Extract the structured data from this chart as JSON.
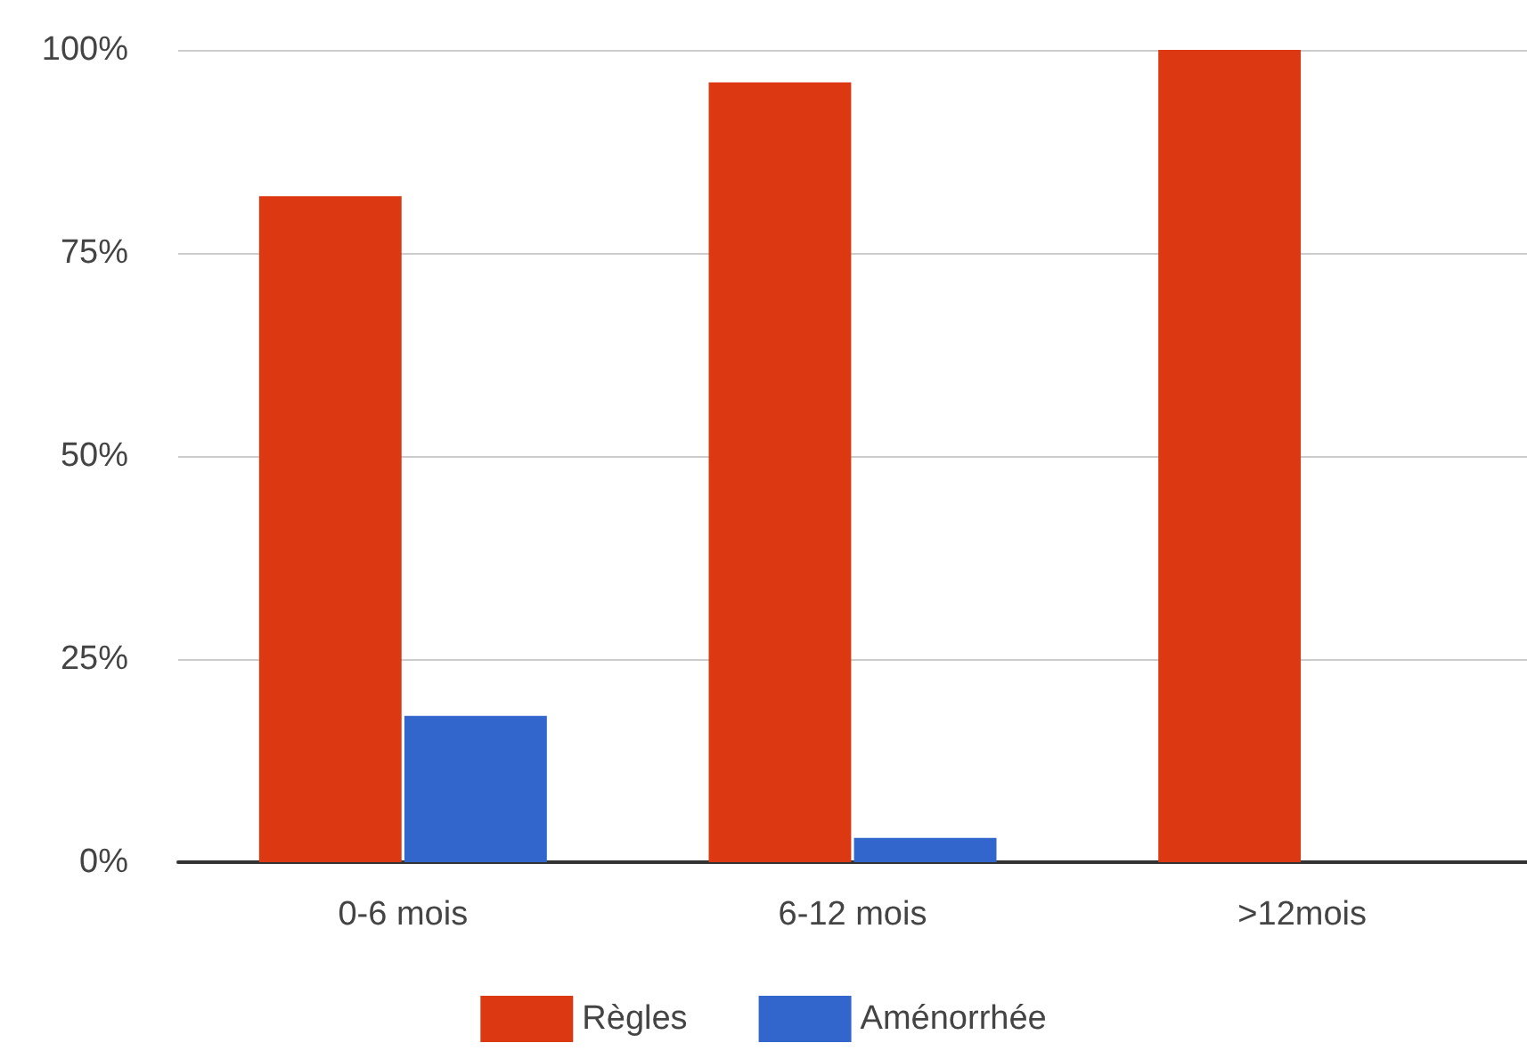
{
  "chart_data": {
    "type": "bar",
    "categories": [
      "0-6 mois",
      "6-12 mois",
      ">12mois"
    ],
    "series": [
      {
        "name": "Règles",
        "color": "#dc3912",
        "values": [
          82,
          96,
          100
        ]
      },
      {
        "name": "Aménorrhée",
        "color": "#3366cc",
        "values": [
          18,
          3,
          0
        ]
      }
    ],
    "ylim": [
      0,
      100
    ],
    "yticks": [
      {
        "value": 0,
        "label": "0%"
      },
      {
        "value": 25,
        "label": "25%"
      },
      {
        "value": 50,
        "label": "50%"
      },
      {
        "value": 75,
        "label": "75%"
      },
      {
        "value": 100,
        "label": "100%"
      }
    ],
    "grid": "y",
    "legend": "bottom"
  }
}
